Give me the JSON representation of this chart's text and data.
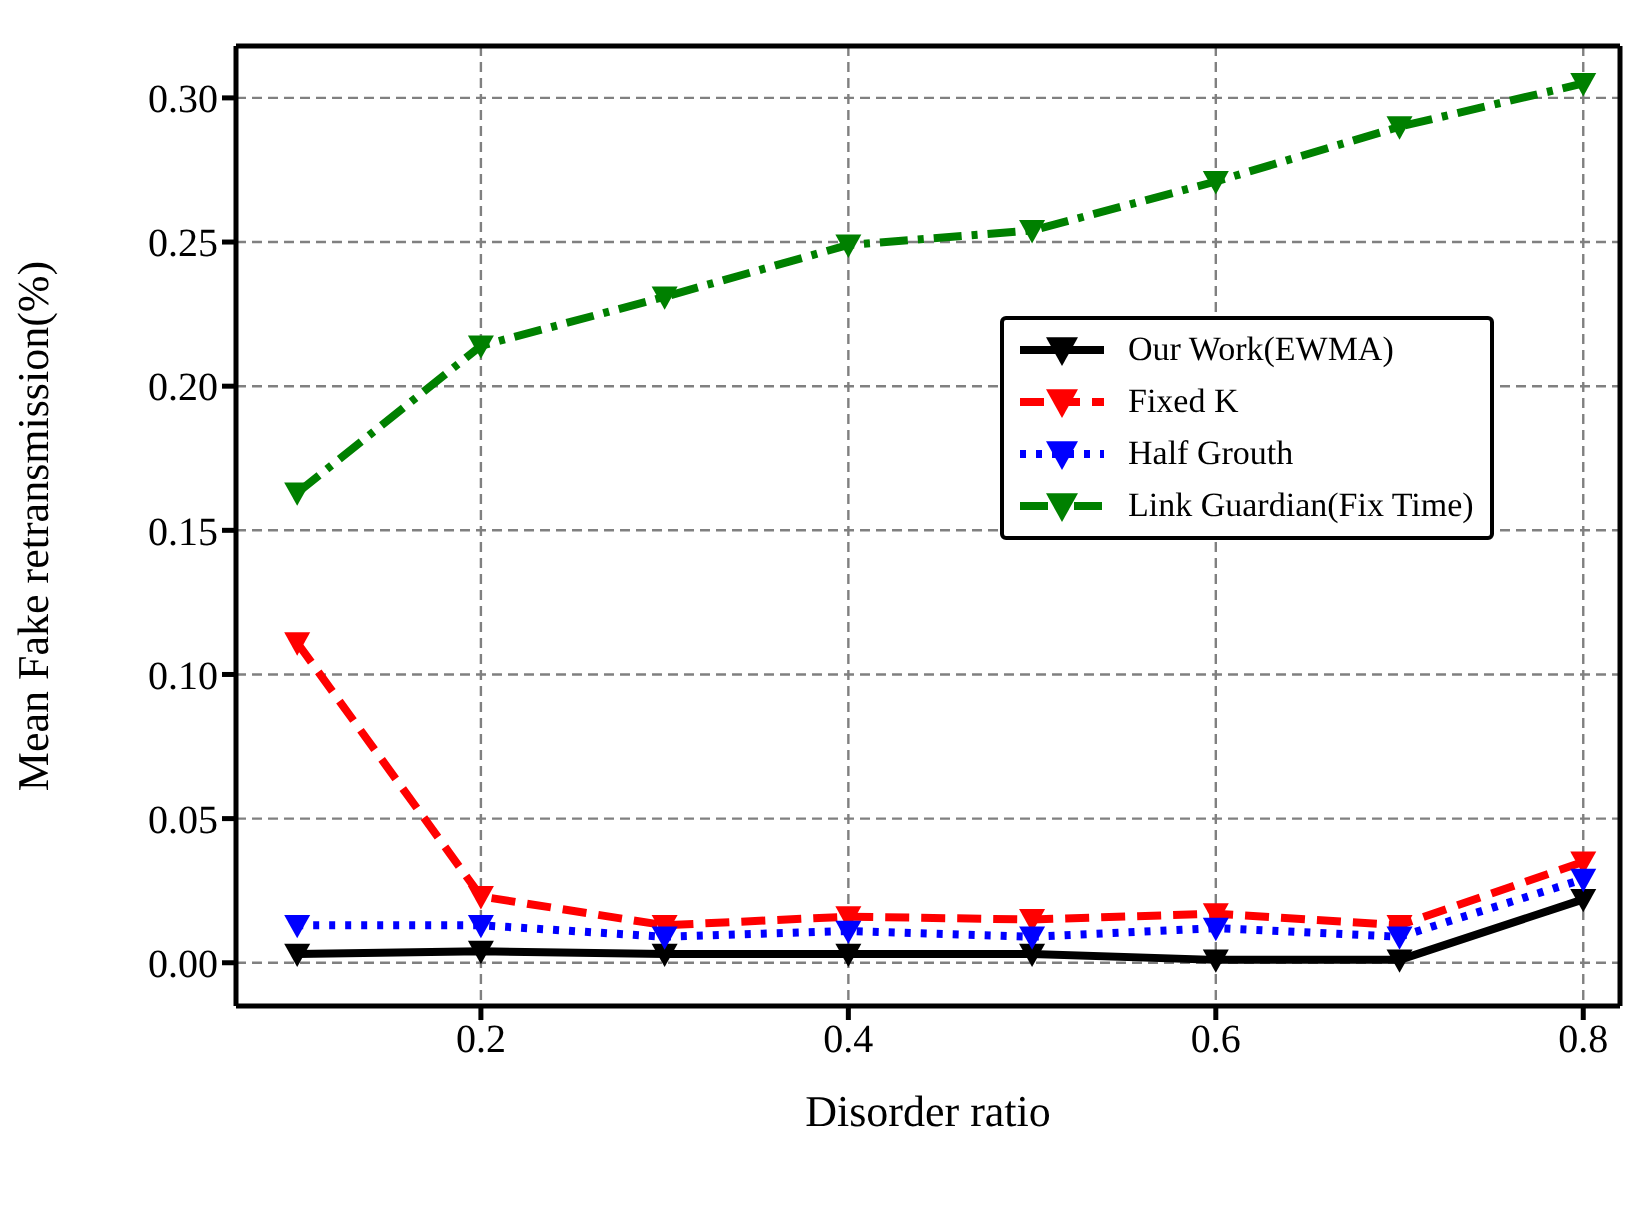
{
  "chart_data": {
    "type": "line",
    "xlabel": "Disorder ratio",
    "ylabel": "Mean Fake retransmission(%)",
    "x": [
      0.1,
      0.2,
      0.3,
      0.4,
      0.5,
      0.6,
      0.7,
      0.8
    ],
    "xlim": [
      0.0667,
      0.82
    ],
    "xticks": [
      0.2,
      0.4,
      0.6,
      0.8
    ],
    "ylim": [
      -0.015,
      0.318
    ],
    "yticks": [
      {
        "value": 0,
        "label": "0.00"
      },
      {
        "value": 0.05,
        "label": "0.05"
      },
      {
        "value": 0.1,
        "label": "0.10"
      },
      {
        "value": 0.15,
        "label": "0.15"
      },
      {
        "value": 0.2,
        "label": "0.20"
      },
      {
        "value": 0.25,
        "label": "0.25"
      },
      {
        "value": 0.3,
        "label": "0.30"
      }
    ],
    "grid": true,
    "legend": "center right",
    "marker": "triangle",
    "series": [
      {
        "name": "Our Work(EWMA)",
        "color": "#000000",
        "line_style": "solid",
        "values": [
          0.003,
          0.004,
          0.003,
          0.003,
          0.003,
          0.001,
          0.001,
          0.022
        ]
      },
      {
        "name": "Fixed K",
        "color": "#ff0000",
        "line_style": "dashed",
        "values": [
          0.111,
          0.023,
          0.013,
          0.016,
          0.015,
          0.017,
          0.013,
          0.035
        ]
      },
      {
        "name": "Half Grouth",
        "color": "#0000ff",
        "line_style": "dotted",
        "values": [
          0.013,
          0.013,
          0.009,
          0.011,
          0.009,
          0.012,
          0.009,
          0.029
        ]
      },
      {
        "name": "Link Guardian(Fix Time)",
        "color": "#008000",
        "line_style": "dashdot",
        "values": [
          0.163,
          0.214,
          0.231,
          0.249,
          0.254,
          0.271,
          0.29,
          0.305
        ]
      }
    ]
  }
}
